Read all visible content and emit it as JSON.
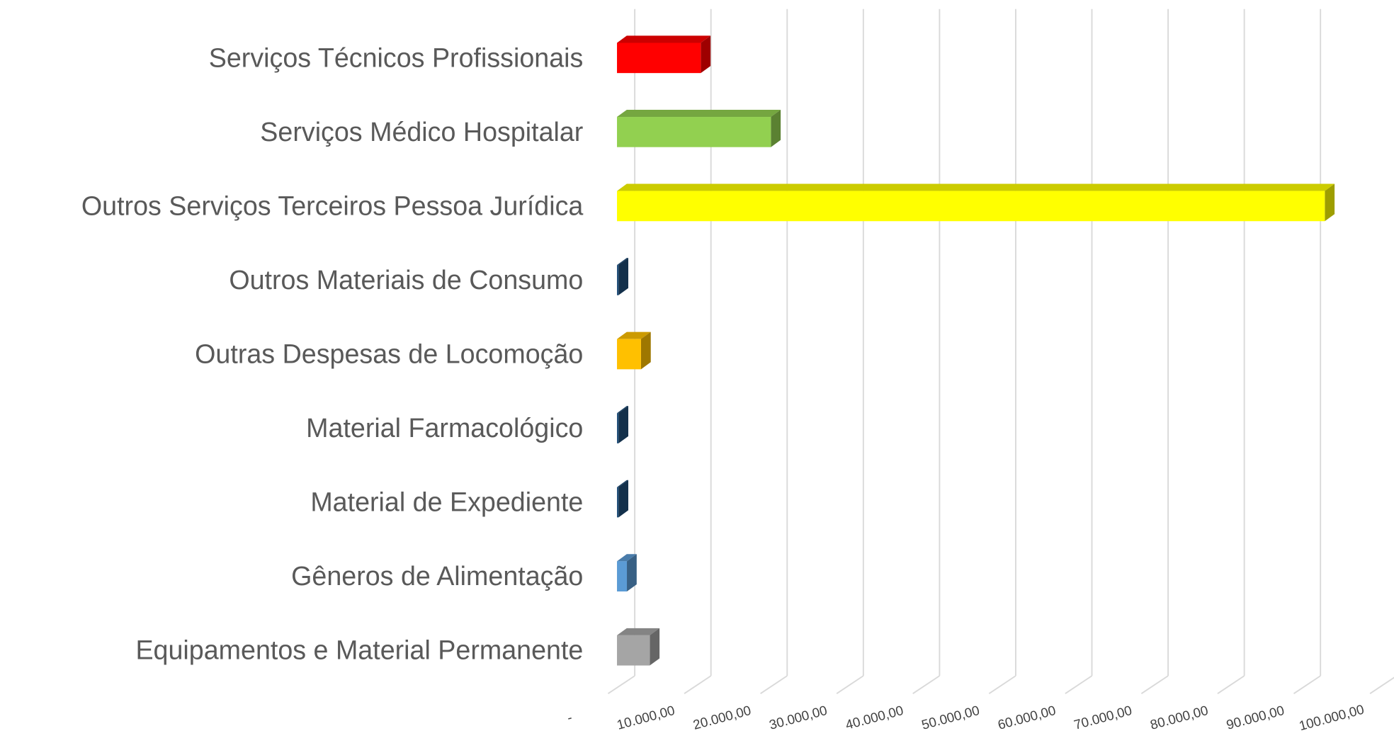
{
  "chart_data": {
    "type": "bar3d_horizontal",
    "categories": [
      "Serviços Técnicos Profissionais",
      "Serviços Médico Hospitalar",
      "Outros Serviços Terceiros Pessoa Jurídica",
      "Outros Materiais de Consumo",
      "Outras Despesas de Locomoção",
      "Material Farmacológico",
      "Material de Expediente",
      "Gêneros de Alimentação",
      "Equipamentos e Material Permanente"
    ],
    "values": [
      11000,
      20200,
      92900,
      200,
      3150,
      200,
      200,
      1300,
      4300
    ],
    "colors": [
      "#ff0000",
      "#92d050",
      "#ffff00",
      "#1f4e79",
      "#ffc000",
      "#1f4e79",
      "#1f4e79",
      "#5b9bd5",
      "#a5a5a5"
    ],
    "xlim": [
      0,
      100000
    ],
    "xticks": [
      {
        "value": 0,
        "label": "-"
      },
      {
        "value": 10000,
        "label": "10.000,00"
      },
      {
        "value": 20000,
        "label": "20.000,00"
      },
      {
        "value": 30000,
        "label": "30.000,00"
      },
      {
        "value": 40000,
        "label": "40.000,00"
      },
      {
        "value": 50000,
        "label": "50.000,00"
      },
      {
        "value": 60000,
        "label": "60.000,00"
      },
      {
        "value": 70000,
        "label": "70.000,00"
      },
      {
        "value": 80000,
        "label": "80.000,00"
      },
      {
        "value": 90000,
        "label": "90.000,00"
      },
      {
        "value": 100000,
        "label": "100.000,00"
      }
    ],
    "grid": true
  }
}
